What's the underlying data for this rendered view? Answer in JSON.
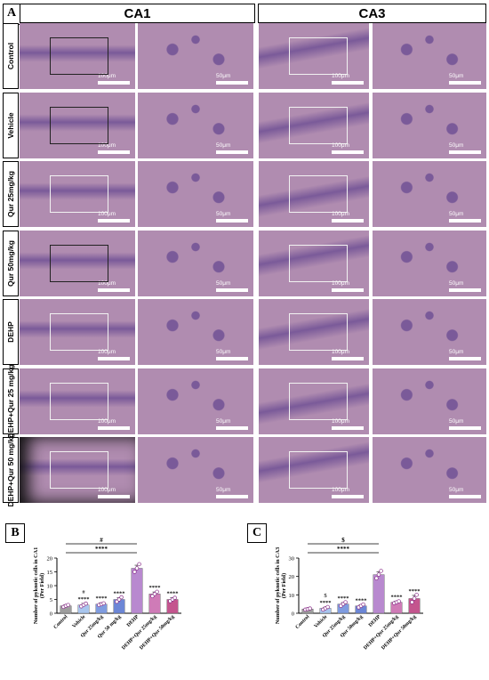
{
  "figure": {
    "panel_letters": [
      "A",
      "B",
      "C"
    ],
    "regions": [
      "CA1",
      "CA3"
    ],
    "rows": [
      "Control",
      "Vehicle",
      "Qur 25mg/kg",
      "Qur 50mg/kg",
      "DEHP",
      "DEHP+Qur 25 mg/kg",
      "DEHP+Qur 50 mg/kg"
    ],
    "scale_low": "100μm",
    "scale_high": "50μm"
  },
  "colors": {
    "tissue": "#b08cb0",
    "tissue_dark": "#7a5a99",
    "box_dark": "#222222",
    "box_light": "#f2f2f2",
    "bars": [
      "#9e9e9e",
      "#a9c6ee",
      "#7f9ce0",
      "#6c86d6",
      "#b889cf",
      "#cf7bb7",
      "#c4558e"
    ],
    "point_fill": "#ffffff",
    "point_stroke": "#8a2f8a"
  },
  "chart_data": [
    {
      "type": "bar",
      "panel": "B",
      "ylabel": "Number of pyknotic cells in CA1 (Per Field)",
      "ylim": [
        0,
        20
      ],
      "yticks": [
        "0",
        "5",
        "10",
        "15",
        "20"
      ],
      "categories": [
        "Control",
        "Vehicle",
        "Qur 25mg/kg",
        "Qur 50 mg/kg",
        "DEHP",
        "DEHP+Qur 25mg/kg",
        "DEHP+Qur 50mg/kg"
      ],
      "values": [
        2.7,
        3.0,
        3.3,
        5.0,
        16.3,
        7.0,
        5.0
      ],
      "errors": [
        0.4,
        0.6,
        0.5,
        0.6,
        1.1,
        0.7,
        0.6
      ],
      "points": [
        [
          2.3,
          2.7,
          3.0
        ],
        [
          2.5,
          3.0,
          3.5
        ],
        [
          3.0,
          3.3,
          3.6
        ],
        [
          4.2,
          5.0,
          5.8
        ],
        [
          15.0,
          16.3,
          17.8
        ],
        [
          6.2,
          7.0,
          7.8
        ],
        [
          4.4,
          5.0,
          5.6
        ]
      ],
      "annotations": [
        "#",
        "****",
        "****",
        "****",
        "****",
        "****",
        "****",
        "****"
      ],
      "brackets": [
        {
          "label": "****",
          "from": 0,
          "to": 4
        },
        {
          "label": "#",
          "from": 0,
          "to": 4
        }
      ]
    },
    {
      "type": "bar",
      "panel": "C",
      "ylabel": "Number of pyknotic cells in CA3 (Per Field)",
      "ylim": [
        0,
        30
      ],
      "yticks": [
        "0",
        "10",
        "20",
        "30"
      ],
      "categories": [
        "Control",
        "Vehicle",
        "Qur 25mg/kg",
        "Qur 50mg/kg",
        "DEHP",
        "DEHP+Qur 25mg/kg",
        "DEHP+Qur 50mg/kg"
      ],
      "values": [
        2.3,
        2.7,
        5.0,
        4.0,
        21.0,
        6.0,
        8.0
      ],
      "errors": [
        0.4,
        0.6,
        0.8,
        0.7,
        1.5,
        0.6,
        1.7
      ],
      "points": [
        [
          2.0,
          2.3,
          2.6
        ],
        [
          2.0,
          2.7,
          3.4
        ],
        [
          4.0,
          5.0,
          6.0
        ],
        [
          3.2,
          4.0,
          4.8
        ],
        [
          19.0,
          21.0,
          23.0
        ],
        [
          5.5,
          6.0,
          6.5
        ],
        [
          6.0,
          8.0,
          10.0
        ]
      ],
      "annotations": [
        "$",
        "****",
        "****",
        "****",
        "****",
        "****",
        "****"
      ],
      "brackets": [
        {
          "label": "****",
          "from": 0,
          "to": 4
        },
        {
          "label": "$",
          "from": 0,
          "to": 4
        }
      ]
    }
  ]
}
